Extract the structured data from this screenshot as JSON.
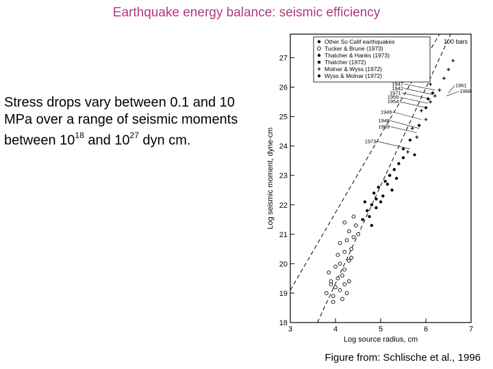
{
  "slide": {
    "title": "Earthquake energy balance: seismic efficiency",
    "text_parts": [
      "Stress drops vary between 0.1 and 10 MPa over a range of seismic moments between 10",
      "18",
      " and 10",
      "27",
      " dyn cm."
    ],
    "credit": "Figure from: Schlische et al., 1996"
  },
  "chart_data": {
    "type": "scatter",
    "xlabel": "Log source radius, cm",
    "ylabel": "Log seismic moment, dyne-cm",
    "xlim": [
      3,
      7
    ],
    "ylim": [
      18,
      27.8
    ],
    "x_ticks": [
      3,
      4,
      5,
      6,
      7
    ],
    "y_ticks": [
      18,
      19,
      20,
      21,
      22,
      23,
      24,
      25,
      26,
      27
    ],
    "legend": [
      "Other So Calif earthquakes",
      "Tucker & Brune (1973)",
      "Thatcher & Hanks (1973)",
      "Thatcher (1972)",
      "Molnar & Wyss (1972)",
      "Wyss & Molnar (1972)"
    ],
    "line_label": "100 bars",
    "year_labels": [
      "1947",
      "1942",
      "1971",
      "1956",
      "1954",
      "1946",
      "1948",
      "1969",
      "1973",
      "1961",
      "1968"
    ],
    "series": [
      {
        "name": "Tucker & Brune (1973)",
        "marker": "circle",
        "points": [
          [
            3.8,
            19.0
          ],
          [
            3.9,
            19.3
          ],
          [
            3.95,
            18.9
          ],
          [
            4.0,
            19.2
          ],
          [
            4.05,
            19.5
          ],
          [
            4.1,
            19.1
          ],
          [
            4.15,
            19.6
          ],
          [
            4.2,
            19.3
          ],
          [
            3.85,
            19.7
          ],
          [
            4.0,
            19.9
          ],
          [
            4.1,
            20.0
          ],
          [
            4.2,
            19.8
          ],
          [
            4.3,
            20.1
          ],
          [
            4.05,
            20.3
          ],
          [
            4.2,
            20.4
          ],
          [
            4.35,
            20.5
          ],
          [
            4.1,
            20.7
          ],
          [
            4.25,
            20.8
          ],
          [
            4.4,
            20.9
          ],
          [
            4.3,
            21.1
          ],
          [
            4.45,
            21.3
          ],
          [
            4.5,
            21.0
          ],
          [
            4.2,
            21.4
          ],
          [
            4.4,
            21.6
          ],
          [
            3.95,
            18.7
          ],
          [
            4.15,
            18.8
          ],
          [
            4.3,
            19.4
          ],
          [
            4.25,
            19.0
          ],
          [
            3.9,
            19.4
          ],
          [
            4.35,
            20.2
          ]
        ]
      },
      {
        "name": "Thatcher & Hanks (1973)",
        "marker": "dot",
        "points": [
          [
            4.6,
            21.5
          ],
          [
            4.7,
            21.8
          ],
          [
            4.8,
            22.0
          ],
          [
            4.75,
            21.6
          ],
          [
            4.9,
            22.2
          ],
          [
            4.85,
            22.4
          ],
          [
            5.0,
            22.1
          ],
          [
            4.95,
            22.6
          ],
          [
            5.1,
            22.8
          ],
          [
            5.05,
            22.3
          ],
          [
            5.2,
            23.0
          ],
          [
            5.15,
            22.7
          ],
          [
            5.3,
            23.2
          ],
          [
            4.65,
            22.1
          ],
          [
            4.8,
            21.3
          ],
          [
            5.25,
            22.5
          ],
          [
            5.4,
            23.4
          ],
          [
            5.35,
            22.9
          ],
          [
            5.5,
            23.6
          ],
          [
            4.9,
            21.9
          ]
        ]
      },
      {
        "name": "Molnar & Wyss (1972)",
        "marker": "plus",
        "points": [
          [
            5.6,
            23.8
          ],
          [
            5.8,
            24.3
          ],
          [
            5.7,
            24.6
          ],
          [
            6.0,
            24.9
          ],
          [
            5.9,
            25.2
          ],
          [
            6.1,
            25.5
          ],
          [
            6.2,
            25.7
          ],
          [
            6.3,
            25.9
          ],
          [
            6.1,
            26.1
          ],
          [
            6.4,
            26.3
          ],
          [
            6.5,
            26.6
          ],
          [
            6.6,
            26.9
          ]
        ]
      },
      {
        "name": "Wyss & Molnar (1972)",
        "marker": "diamond",
        "points": [
          [
            5.5,
            23.9
          ],
          [
            5.65,
            24.2
          ],
          [
            5.75,
            23.7
          ],
          [
            5.85,
            24.7
          ],
          [
            6.0,
            25.3
          ],
          [
            6.15,
            25.8
          ],
          [
            6.05,
            25.6
          ]
        ]
      }
    ]
  }
}
